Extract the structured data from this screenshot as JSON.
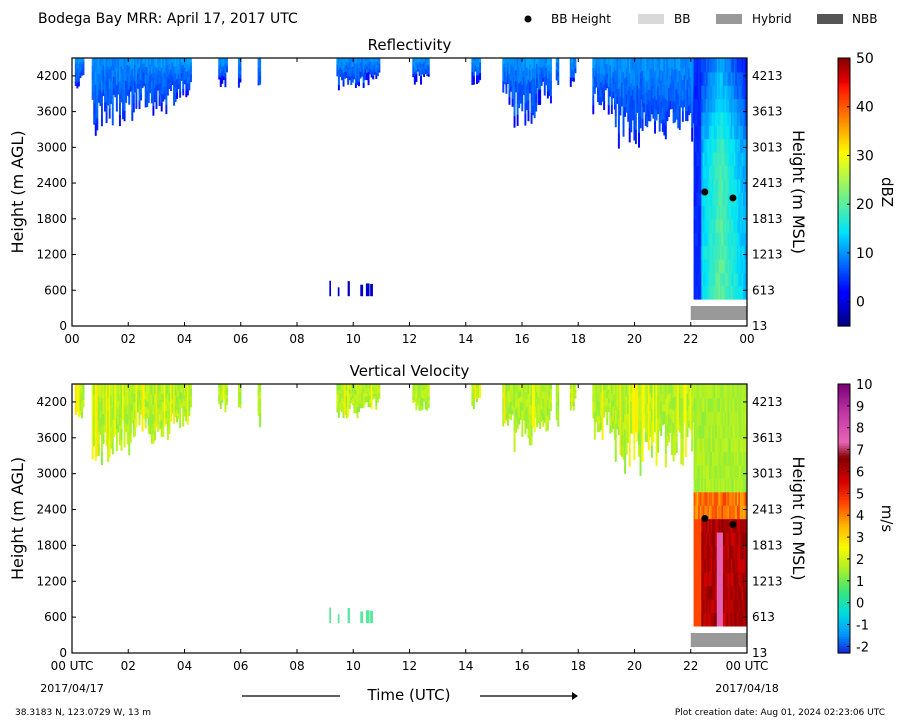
{
  "page": {
    "title": "Bodega Bay MRR:  April 17, 2017 UTC",
    "legend": [
      {
        "label": "BB Height",
        "kind": "dot",
        "color": "#000000"
      },
      {
        "label": "BB",
        "kind": "box",
        "color": "#d9d9d9"
      },
      {
        "label": "Hybrid",
        "kind": "box",
        "color": "#999999"
      },
      {
        "label": "NBB",
        "kind": "box",
        "color": "#555555"
      }
    ],
    "footer_left": "38.3183 N, 123.0729 W, 13 m",
    "footer_right": "Plot creation date: Aug 01, 2024 02:23:06 UTC",
    "xlabel": "Time (UTC)",
    "start_date": "2017/04/17",
    "end_date": "2017/04/18",
    "x_first_label": "00 UTC",
    "x_last_label": "00 UTC"
  },
  "chart_data": [
    {
      "type": "heatmap",
      "title": "Reflectivity",
      "ylabel": "Height (m AGL)",
      "ylabel_right": "Height (m MSL)",
      "colorbar_label": "dBZ",
      "colorbar_range": [
        -5,
        50
      ],
      "colorbar_ticks": [
        0,
        10,
        20,
        30,
        40,
        50
      ],
      "x_ticks": [
        "00",
        "02",
        "04",
        "06",
        "08",
        "10",
        "12",
        "14",
        "16",
        "18",
        "20",
        "22",
        "00"
      ],
      "xlim_hours": [
        0,
        24
      ],
      "ylim": [
        0,
        4500
      ],
      "y_ticks": [
        0,
        600,
        1200,
        1800,
        2400,
        3000,
        3600,
        4200
      ],
      "y_ticks_right": [
        13,
        613,
        1213,
        1813,
        2413,
        3013,
        3613,
        4213
      ],
      "bb_height_points": [
        {
          "x": 22.5,
          "y": 2250
        },
        {
          "x": 23.5,
          "y": 2150
        }
      ],
      "bb_type_bar": {
        "type": "Hybrid",
        "start": 22.0,
        "end": 24.0
      }
    },
    {
      "type": "heatmap",
      "title": "Vertical Velocity",
      "ylabel": "Height (m AGL)",
      "ylabel_right": "Height (m MSL)",
      "colorbar_label": "m/s",
      "colorbar_range": [
        -2.3,
        10
      ],
      "colorbar_ticks": [
        -2,
        -1,
        0,
        1,
        2,
        3,
        4,
        5,
        6,
        7,
        8,
        9,
        10
      ],
      "x_ticks": [
        "00 UTC",
        "02",
        "04",
        "06",
        "08",
        "10",
        "12",
        "14",
        "16",
        "18",
        "20",
        "22",
        "00 UTC"
      ],
      "xlim_hours": [
        0,
        24
      ],
      "ylim": [
        0,
        4500
      ],
      "y_ticks": [
        0,
        600,
        1200,
        1800,
        2400,
        3000,
        3600,
        4200
      ],
      "y_ticks_right": [
        13,
        613,
        1213,
        1813,
        2413,
        3013,
        3613,
        4213
      ],
      "bb_height_points": [
        {
          "x": 22.5,
          "y": 2250
        },
        {
          "x": 23.5,
          "y": 2150
        }
      ],
      "bb_type_bar": {
        "type": "Hybrid",
        "start": 22.0,
        "end": 24.0
      }
    }
  ]
}
